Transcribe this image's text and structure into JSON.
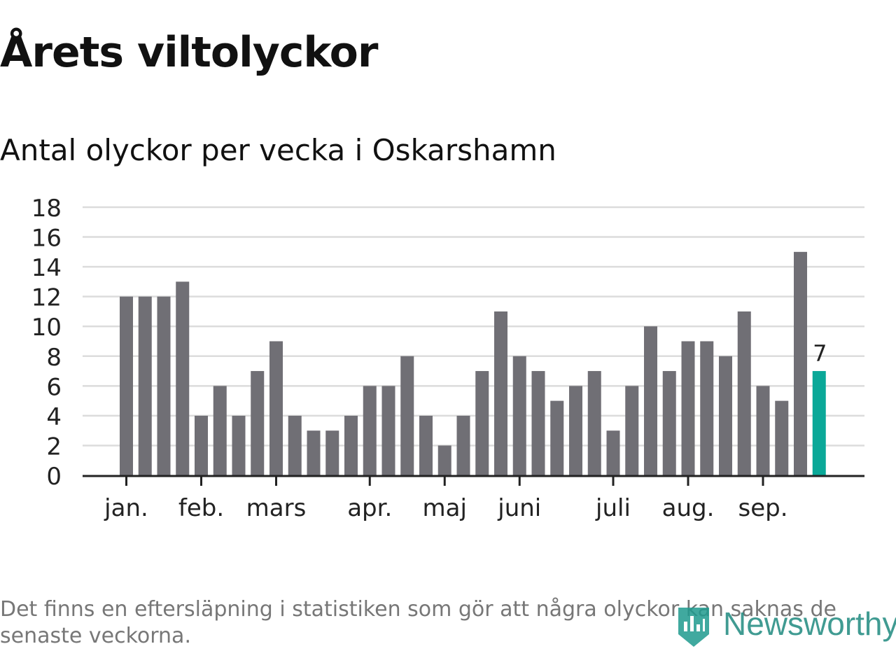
{
  "title": "Årets viltolyckor",
  "subtitle": "Antal olyckor per vecka i Oskarshamn",
  "footnote": "Det finns en eftersläpning i statistiken som gör att några olyckor kan saknas de senaste veckorna.",
  "brand": {
    "name": "Newsworthy",
    "color": "#1f9a8e"
  },
  "colors": {
    "bar": "#706f75",
    "highlight": "#0aa898",
    "grid": "#dcdcdc",
    "axis": "#222222"
  },
  "chart_data": {
    "type": "bar",
    "title": "Årets viltolyckor",
    "subtitle": "Antal olyckor per vecka i Oskarshamn",
    "weeks": [
      1,
      2,
      3,
      4,
      5,
      6,
      7,
      8,
      9,
      10,
      11,
      12,
      13,
      14,
      15,
      16,
      17,
      18,
      19,
      20,
      21,
      22,
      23,
      24,
      25,
      26,
      27,
      28,
      29,
      30,
      31,
      32,
      33,
      34,
      35,
      36,
      37,
      38
    ],
    "values": [
      12,
      12,
      12,
      13,
      4,
      6,
      4,
      7,
      9,
      4,
      3,
      3,
      4,
      6,
      6,
      8,
      4,
      2,
      4,
      7,
      11,
      8,
      7,
      5,
      6,
      7,
      3,
      6,
      10,
      7,
      9,
      9,
      8,
      11,
      6,
      5,
      15,
      7
    ],
    "highlight_index": 37,
    "highlight_label": "7",
    "ylim": [
      0,
      18
    ],
    "yticks": [
      0,
      2,
      4,
      6,
      8,
      10,
      12,
      14,
      16,
      18
    ],
    "month_ticks": [
      {
        "label": "jan.",
        "week": 1
      },
      {
        "label": "feb.",
        "week": 5
      },
      {
        "label": "mars",
        "week": 9
      },
      {
        "label": "apr.",
        "week": 14
      },
      {
        "label": "maj",
        "week": 18
      },
      {
        "label": "juni",
        "week": 22
      },
      {
        "label": "juli",
        "week": 27
      },
      {
        "label": "aug.",
        "week": 31
      },
      {
        "label": "sep.",
        "week": 35
      }
    ],
    "grid": true,
    "xlabel": "",
    "ylabel": ""
  }
}
